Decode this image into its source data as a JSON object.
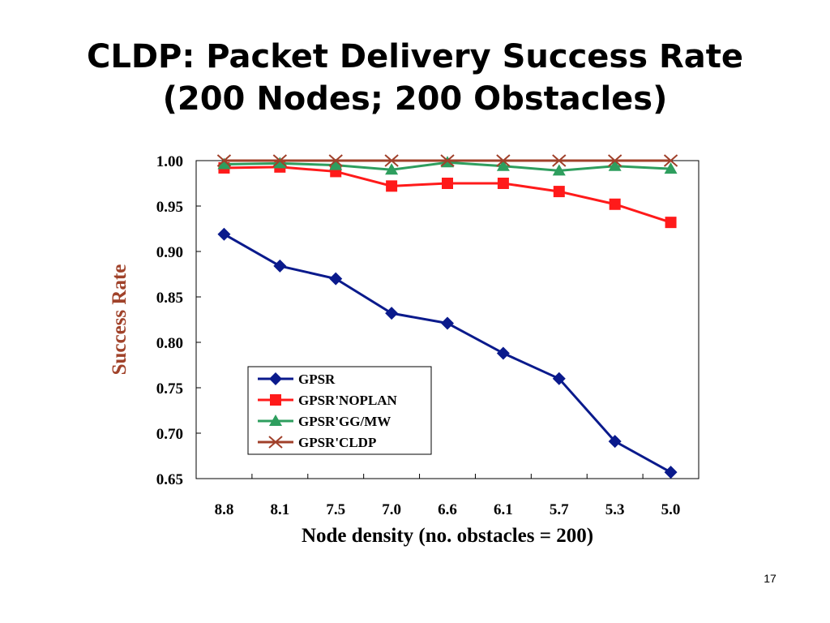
{
  "slide": {
    "title_line1": "CLDP: Packet Delivery Success Rate",
    "title_line2": "(200 Nodes; 200 Obstacles)",
    "page_number": "17"
  },
  "chart_data": {
    "type": "line",
    "title": "",
    "xlabel": "Node density (no. obstacles = 200)",
    "ylabel": "Success Rate",
    "ylabel_color": "#a0422a",
    "categories": [
      "8.8",
      "8.1",
      "7.5",
      "7.0",
      "6.6",
      "6.1",
      "5.7",
      "5.3",
      "5.0"
    ],
    "ylim": [
      0.65,
      1.0
    ],
    "yticks": [
      "0.65",
      "0.70",
      "0.75",
      "0.80",
      "0.85",
      "0.90",
      "0.95",
      "1.00"
    ],
    "grid": false,
    "legend_position": "bottom-center",
    "series": [
      {
        "name": "GPSR",
        "color": "#0a1a8c",
        "marker": "diamond",
        "values": [
          0.919,
          0.884,
          0.87,
          0.832,
          0.821,
          0.788,
          0.76,
          0.691,
          0.657
        ]
      },
      {
        "name": "GPSR'NOPLAN",
        "color": "#ff1a1a",
        "marker": "square",
        "values": [
          0.992,
          0.993,
          0.988,
          0.972,
          0.975,
          0.975,
          0.966,
          0.952,
          0.932
        ]
      },
      {
        "name": "GPSR'GG/MW",
        "color": "#2e9e5e",
        "marker": "triangle",
        "values": [
          0.996,
          0.997,
          0.995,
          0.99,
          0.998,
          0.994,
          0.989,
          0.994,
          0.991
        ]
      },
      {
        "name": "GPSR'CLDP",
        "color": "#a0402a",
        "marker": "x",
        "values": [
          1.0,
          1.0,
          1.0,
          1.0,
          1.0,
          1.0,
          1.0,
          1.0,
          1.0
        ]
      }
    ]
  }
}
